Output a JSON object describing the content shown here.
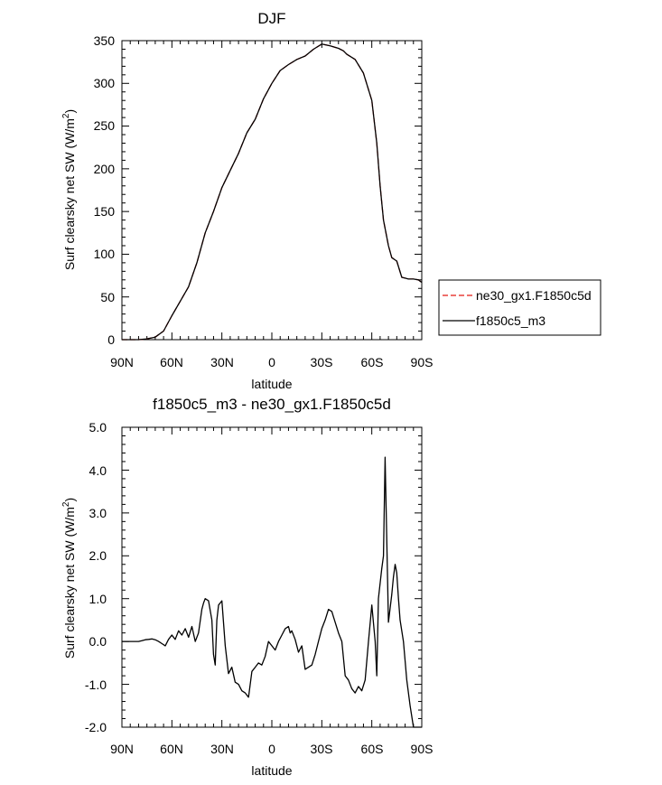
{
  "chart_data": [
    {
      "type": "line",
      "title": "DJF",
      "xlabel": "latitude",
      "ylabel_main": "Surf clearsky net SW (W/m",
      "ylabel_sup": "2",
      "ylabel_tail": ")",
      "xlim": [
        90,
        -90
      ],
      "ylim": [
        0,
        350
      ],
      "x_ticks": [
        90,
        60,
        30,
        0,
        -30,
        -60,
        -90
      ],
      "x_tick_labels": [
        "90N",
        "60N",
        "30N",
        "0",
        "30S",
        "60S",
        "90S"
      ],
      "y_ticks": [
        0,
        50,
        100,
        150,
        200,
        250,
        300,
        350
      ],
      "y_tick_labels": [
        "0",
        "50",
        "100",
        "150",
        "200",
        "250",
        "300",
        "350"
      ],
      "legend": [
        {
          "label": "ne30_gx1.F1850c5d",
          "color": "#e8413a",
          "dash": "dashed"
        },
        {
          "label": "f1850c5_m3",
          "color": "#000000",
          "dash": "solid"
        }
      ],
      "x": [
        90,
        85,
        80,
        75,
        70,
        65,
        60,
        55,
        50,
        45,
        40,
        35,
        30,
        25,
        20,
        15,
        10,
        5,
        0,
        -5,
        -10,
        -15,
        -20,
        -25,
        -30,
        -35,
        -40,
        -43,
        -45,
        -50,
        -55,
        -60,
        -63,
        -65,
        -67,
        -70,
        -72,
        -75,
        -78,
        -80,
        -82,
        -85,
        -88,
        -90
      ],
      "series": [
        {
          "name": "ne30_gx1.F1850c5d",
          "color": "#e8413a",
          "values": [
            0,
            0,
            0,
            1,
            3,
            10,
            28,
            45,
            62,
            90,
            125,
            150,
            178,
            198,
            218,
            242,
            258,
            282,
            300,
            315,
            322,
            328,
            332,
            340,
            346,
            344,
            341,
            338,
            334,
            328,
            312,
            280,
            230,
            180,
            140,
            110,
            96,
            92,
            73,
            72,
            71,
            71,
            70,
            67
          ]
        },
        {
          "name": "f1850c5_m3",
          "color": "#000000",
          "values": [
            0,
            0,
            0,
            1,
            3,
            10,
            28,
            45,
            62,
            90,
            125,
            150,
            178,
            198,
            218,
            242,
            258,
            282,
            300,
            315,
            322,
            328,
            332,
            340,
            346,
            344,
            341,
            338,
            334,
            328,
            312,
            280,
            230,
            180,
            140,
            110,
            96,
            92,
            73,
            72,
            71,
            71,
            70,
            67
          ]
        }
      ]
    },
    {
      "type": "line",
      "title": "f1850c5_m3 - ne30_gx1.F1850c5d",
      "xlabel": "latitude",
      "ylabel_main": "Surf clearsky net SW (W/m",
      "ylabel_sup": "2",
      "ylabel_tail": ")",
      "xlim": [
        90,
        -90
      ],
      "ylim": [
        -2.0,
        5.0
      ],
      "x_ticks": [
        90,
        60,
        30,
        0,
        -30,
        -60,
        -90
      ],
      "x_tick_labels": [
        "90N",
        "60N",
        "30N",
        "0",
        "30S",
        "60S",
        "90S"
      ],
      "y_ticks": [
        -2.0,
        -1.0,
        0.0,
        1.0,
        2.0,
        3.0,
        4.0,
        5.0
      ],
      "y_tick_labels": [
        "-2.0",
        "-1.0",
        "0.0",
        "1.0",
        "2.0",
        "3.0",
        "4.0",
        "5.0"
      ],
      "x": [
        90,
        85,
        80,
        78,
        76,
        74,
        72,
        70,
        68,
        66,
        64,
        62,
        60,
        58,
        56,
        54,
        52,
        50,
        48,
        46,
        44,
        42,
        41,
        40,
        38,
        36,
        35,
        34,
        33,
        32,
        30,
        28,
        26,
        24,
        22,
        20,
        18,
        16,
        14,
        12,
        10,
        8,
        6,
        4,
        2,
        0,
        -2,
        -4,
        -6,
        -8,
        -10,
        -11,
        -12,
        -14,
        -16,
        -18,
        -20,
        -22,
        -24,
        -26,
        -28,
        -30,
        -32,
        -34,
        -36,
        -38,
        -40,
        -42,
        -44,
        -46,
        -48,
        -50,
        -52,
        -54,
        -56,
        -58,
        -60,
        -62,
        -63,
        -64,
        -66,
        -67,
        -68,
        -70,
        -72,
        -73,
        -74,
        -75,
        -76,
        -77,
        -79,
        -81,
        -83,
        -85,
        -87,
        -88,
        -89,
        -90
      ],
      "series": [
        {
          "name": "f1850c5_m3 - ne30_gx1.F1850c5d",
          "color": "#000000",
          "values": [
            0,
            0,
            0,
            0.02,
            0.04,
            0.05,
            0.06,
            0.04,
            0.0,
            -0.05,
            -0.1,
            0.05,
            0.15,
            0.05,
            0.25,
            0.15,
            0.3,
            0.1,
            0.35,
            0.0,
            0.2,
            0.75,
            0.9,
            1.0,
            0.95,
            0.5,
            -0.3,
            -0.55,
            0.5,
            0.85,
            0.95,
            -0.1,
            -0.75,
            -0.6,
            -0.95,
            -1.0,
            -1.15,
            -1.2,
            -1.3,
            -0.7,
            -0.6,
            -0.5,
            -0.55,
            -0.35,
            0.0,
            -0.1,
            -0.2,
            0.0,
            0.15,
            0.3,
            0.35,
            0.2,
            0.25,
            0.05,
            -0.25,
            -0.1,
            -0.65,
            -0.6,
            -0.55,
            -0.3,
            0.0,
            0.3,
            0.5,
            0.75,
            0.7,
            0.45,
            0.2,
            0.0,
            -0.8,
            -0.9,
            -1.1,
            -1.2,
            -1.05,
            -1.15,
            -0.9,
            0.0,
            0.85,
            0.0,
            -0.8,
            1.0,
            1.7,
            2.0,
            4.3,
            0.45,
            1.1,
            1.5,
            1.8,
            1.6,
            1.0,
            0.5,
            0.0,
            -0.9,
            -1.5,
            -2.0,
            -2.0,
            -2.0,
            -2.0,
            -2.0
          ]
        }
      ]
    }
  ]
}
